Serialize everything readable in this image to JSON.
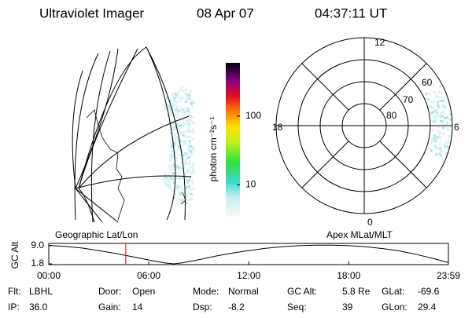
{
  "header": {
    "title": "Ultraviolet Imager",
    "date": "08 Apr 07",
    "time": "04:37:11 UT"
  },
  "colorbar": {
    "label": "photon cm⁻²s⁻¹",
    "log": true,
    "ylim": [
      3.5,
      600
    ],
    "yticks": [
      10,
      100
    ]
  },
  "map": {
    "label": "Geographic Lat/Lon"
  },
  "polar": {
    "label": "Apex MLat/MLT",
    "mlt": [
      "12",
      "18",
      "6",
      "0"
    ],
    "lat": [
      "60",
      "70",
      "80"
    ]
  },
  "timeline": {
    "ylabel": "GC Alt",
    "xlim": [
      0,
      23.983
    ],
    "ylim": [
      1.5,
      9.8
    ],
    "yticks": [
      {
        "value": 9,
        "label": "9.0"
      },
      1.8
    ],
    "xticks": [
      {
        "value": 0,
        "label": "00:00"
      },
      {
        "value": 6,
        "label": "06:00"
      },
      {
        "value": 12,
        "label": "12:00"
      },
      {
        "value": 18,
        "label": "18:00"
      },
      {
        "value": 23.983,
        "label": "23:59"
      }
    ],
    "x": [
      0,
      1,
      2,
      3,
      4,
      5,
      6,
      7,
      7.5,
      8,
      9,
      10,
      11,
      12,
      13,
      14,
      15,
      16,
      17,
      18,
      19,
      20,
      21,
      22,
      23,
      23.983
    ],
    "values": [
      9.0,
      8.6,
      8.0,
      7.0,
      5.9,
      4.6,
      3.3,
      2.1,
      1.8,
      2.2,
      3.4,
      4.8,
      6.0,
      7.0,
      7.9,
      8.5,
      8.9,
      9.1,
      9.1,
      8.9,
      8.5,
      7.8,
      6.9,
      5.6,
      4.0,
      2.3
    ],
    "color": "#000000",
    "current": 4.62,
    "current_color": "#e00000"
  },
  "fields": [
    [
      {
        "label": "Flt:",
        "value": "LBHL"
      },
      {
        "label": "Door:",
        "value": "Open"
      },
      {
        "label": "Mode:",
        "value": "Normal"
      },
      {
        "label": "GC Alt:",
        "value": "5.8 Re"
      },
      {
        "label": "GLat:",
        "value": "-69.6"
      }
    ],
    [
      {
        "label": "IP:",
        "value": "36.0"
      },
      {
        "label": "Gain:",
        "value": "14"
      },
      {
        "label": "Dsp:",
        "value": "-8.2"
      },
      {
        "label": "Seq:",
        "value": "39"
      },
      {
        "label": "GLon:",
        "value": "29.4"
      }
    ]
  ]
}
